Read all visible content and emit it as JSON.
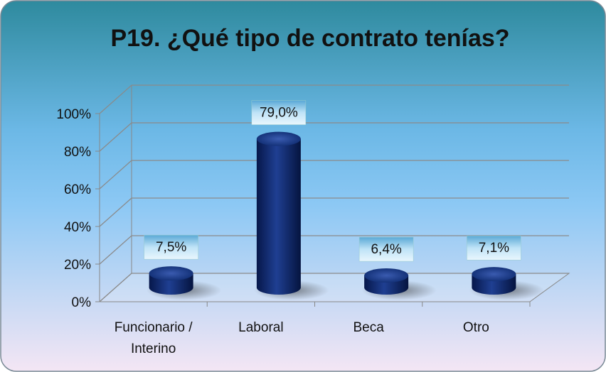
{
  "chart_data": {
    "type": "bar",
    "title": "P19. ¿Qué tipo de contrato tenías?",
    "categories": [
      "Funcionario / Interino",
      "Laboral",
      "Beca",
      "Otro"
    ],
    "values": [
      7.5,
      79.0,
      6.4,
      7.1
    ],
    "value_labels": [
      "7,5%",
      "79,0%",
      "6,4%",
      "7,1%"
    ],
    "color": "#0d2a6e",
    "ylim": [
      0,
      100
    ],
    "yticks": [
      {
        "value": 0,
        "label": "0%"
      },
      {
        "value": 20,
        "label": "20%"
      },
      {
        "value": 40,
        "label": "40%"
      },
      {
        "value": 60,
        "label": "60%"
      },
      {
        "value": 80,
        "label": "80%"
      },
      {
        "value": 100,
        "label": "100%"
      }
    ],
    "grid": true
  }
}
